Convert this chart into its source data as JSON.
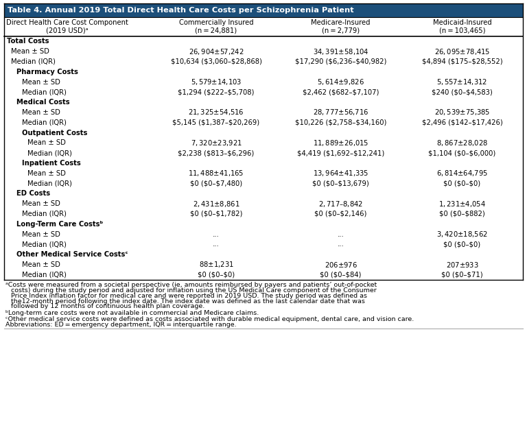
{
  "title": "Table 4. Annual 2019 Total Direct Health Care Costs per Schizophrenia Patient",
  "header_bg": "#1c4f7a",
  "header_text_color": "#ffffff",
  "col_headers": [
    "Direct Health Care Cost Component\n(2019 USD)ᵃ",
    "Commercially Insured\n(n = 24,881)",
    "Medicare-Insured\n(n = 2,779)",
    "Medicaid-Insured\n(n = 103,465)"
  ],
  "rows": [
    {
      "label": "Total Costs",
      "indent": 0,
      "bold": true,
      "commercial": "",
      "medicare": "",
      "medicaid": ""
    },
    {
      "label": "Mean ± SD",
      "indent": 1,
      "bold": false,
      "commercial": "$26,904 ± $57,242",
      "medicare": "$34,391 ± $58,104",
      "medicaid": "$26,095 ± $78,415"
    },
    {
      "label": "Median (IQR)",
      "indent": 1,
      "bold": false,
      "commercial": "$10,634 ($3,060–$28,868)",
      "medicare": "$17,290 ($6,236–$40,982)",
      "medicaid": "$4,894 ($175–$28,552)"
    },
    {
      "label": "Pharmacy Costs",
      "indent": 2,
      "bold": true,
      "commercial": "",
      "medicare": "",
      "medicaid": ""
    },
    {
      "label": "Mean ± SD",
      "indent": 3,
      "bold": false,
      "commercial": "$5,579 ± $14,103",
      "medicare": "$5,614 ± $9,826",
      "medicaid": "$5,557 ± $14,312"
    },
    {
      "label": "Median (IQR)",
      "indent": 3,
      "bold": false,
      "commercial": "$1,294 ($222–$5,708)",
      "medicare": "$2,462 ($682–$7,107)",
      "medicaid": "$240 ($0–$4,583)"
    },
    {
      "label": "Medical Costs",
      "indent": 2,
      "bold": true,
      "commercial": "",
      "medicare": "",
      "medicaid": ""
    },
    {
      "label": "Mean ± SD",
      "indent": 3,
      "bold": false,
      "commercial": "$21,325 ± $54,516",
      "medicare": "$28,777 ± $56,716",
      "medicaid": "$20,539 ± $75,385"
    },
    {
      "label": "Median (IQR)",
      "indent": 3,
      "bold": false,
      "commercial": "$5,145 ($1,387–$20,269)",
      "medicare": "$10,226 ($2,758–$34,160)",
      "medicaid": "$2,496 ($142–$17,426)"
    },
    {
      "label": "Outpatient Costs",
      "indent": 3,
      "bold": true,
      "commercial": "",
      "medicare": "",
      "medicaid": ""
    },
    {
      "label": "Mean ± SD",
      "indent": 4,
      "bold": false,
      "commercial": "$7,320 ± $23,921",
      "medicare": "$11,889 ± $26,015",
      "medicaid": "$8,867 ± $28,028"
    },
    {
      "label": "Median (IQR)",
      "indent": 4,
      "bold": false,
      "commercial": "$2,238 ($813–$6,296)",
      "medicare": "$4,419 ($1,692–$12,241)",
      "medicaid": "$1,104 ($0–$6,000)"
    },
    {
      "label": "Inpatient Costs",
      "indent": 3,
      "bold": true,
      "commercial": "",
      "medicare": "",
      "medicaid": ""
    },
    {
      "label": "Mean ± SD",
      "indent": 4,
      "bold": false,
      "commercial": "$11,488 ± $41,165",
      "medicare": "$13,964 ± $41,335",
      "medicaid": "$6,814 ± $64,795"
    },
    {
      "label": "Median (IQR)",
      "indent": 4,
      "bold": false,
      "commercial": "$0 ($0–$7,480)",
      "medicare": "$0 ($0–$13,679)",
      "medicaid": "$0 ($0–$0)"
    },
    {
      "label": "ED Costs",
      "indent": 2,
      "bold": true,
      "commercial": "",
      "medicare": "",
      "medicaid": ""
    },
    {
      "label": "Mean ± SD",
      "indent": 3,
      "bold": false,
      "commercial": "$2,431 ± $8,861",
      "medicare": "$2,717–$8,842",
      "medicaid": "$1,231 ± $4,054"
    },
    {
      "label": "Median (IQR)",
      "indent": 3,
      "bold": false,
      "commercial": "$0 ($0–$1,782)",
      "medicare": "$0 ($0–$2,146)",
      "medicaid": "$0 ($0–$882)"
    },
    {
      "label": "Long-Term Care Costsᵇ",
      "indent": 2,
      "bold": true,
      "commercial": "",
      "medicare": "",
      "medicaid": ""
    },
    {
      "label": "Mean ± SD",
      "indent": 3,
      "bold": false,
      "commercial": "...",
      "medicare": "...",
      "medicaid": "$3,420 ± $18,562"
    },
    {
      "label": "Median (IQR)",
      "indent": 3,
      "bold": false,
      "commercial": "...",
      "medicare": "...",
      "medicaid": "$0 ($0–$0)"
    },
    {
      "label": "Other Medical Service Costsᶜ",
      "indent": 2,
      "bold": true,
      "commercial": "",
      "medicare": "",
      "medicaid": ""
    },
    {
      "label": "Mean ± SD",
      "indent": 3,
      "bold": false,
      "commercial": "$88 ± $1,231",
      "medicare": "$206 ± $976",
      "medicaid": "$207 ± $933"
    },
    {
      "label": "Median (IQR)",
      "indent": 3,
      "bold": false,
      "commercial": "$0 ($0–$0)",
      "medicare": "$0 ($0–$84)",
      "medicaid": "$0 ($0–$71)"
    }
  ],
  "footnote_a": "ᵃCosts were measured from a societal perspective (ie, amounts reimbursed by payers and patients’ out-of-pocket costs) during the study period and adjusted for inflation using the US Medical Care component of the Consumer Price Index inflation factor for medical care and were reported in 2019 USD. The study period was defined as the12-month period following the index date. The index date was defined as the last calendar date that was followed by 12 months of continuous health plan coverage.",
  "footnote_b": "ᵇLong-term care costs were not available in commercial and Medicare claims.",
  "footnote_c": "ᶜOther medical service costs were defined as costs associated with durable medical equipment, dental care, and vision care.\nAbbreviations: ED = emergency department, IQR = interquartile range.",
  "text_color": "#000000",
  "font_size": 7.2,
  "title_font_size": 8.2,
  "footnote_font_size": 6.8
}
